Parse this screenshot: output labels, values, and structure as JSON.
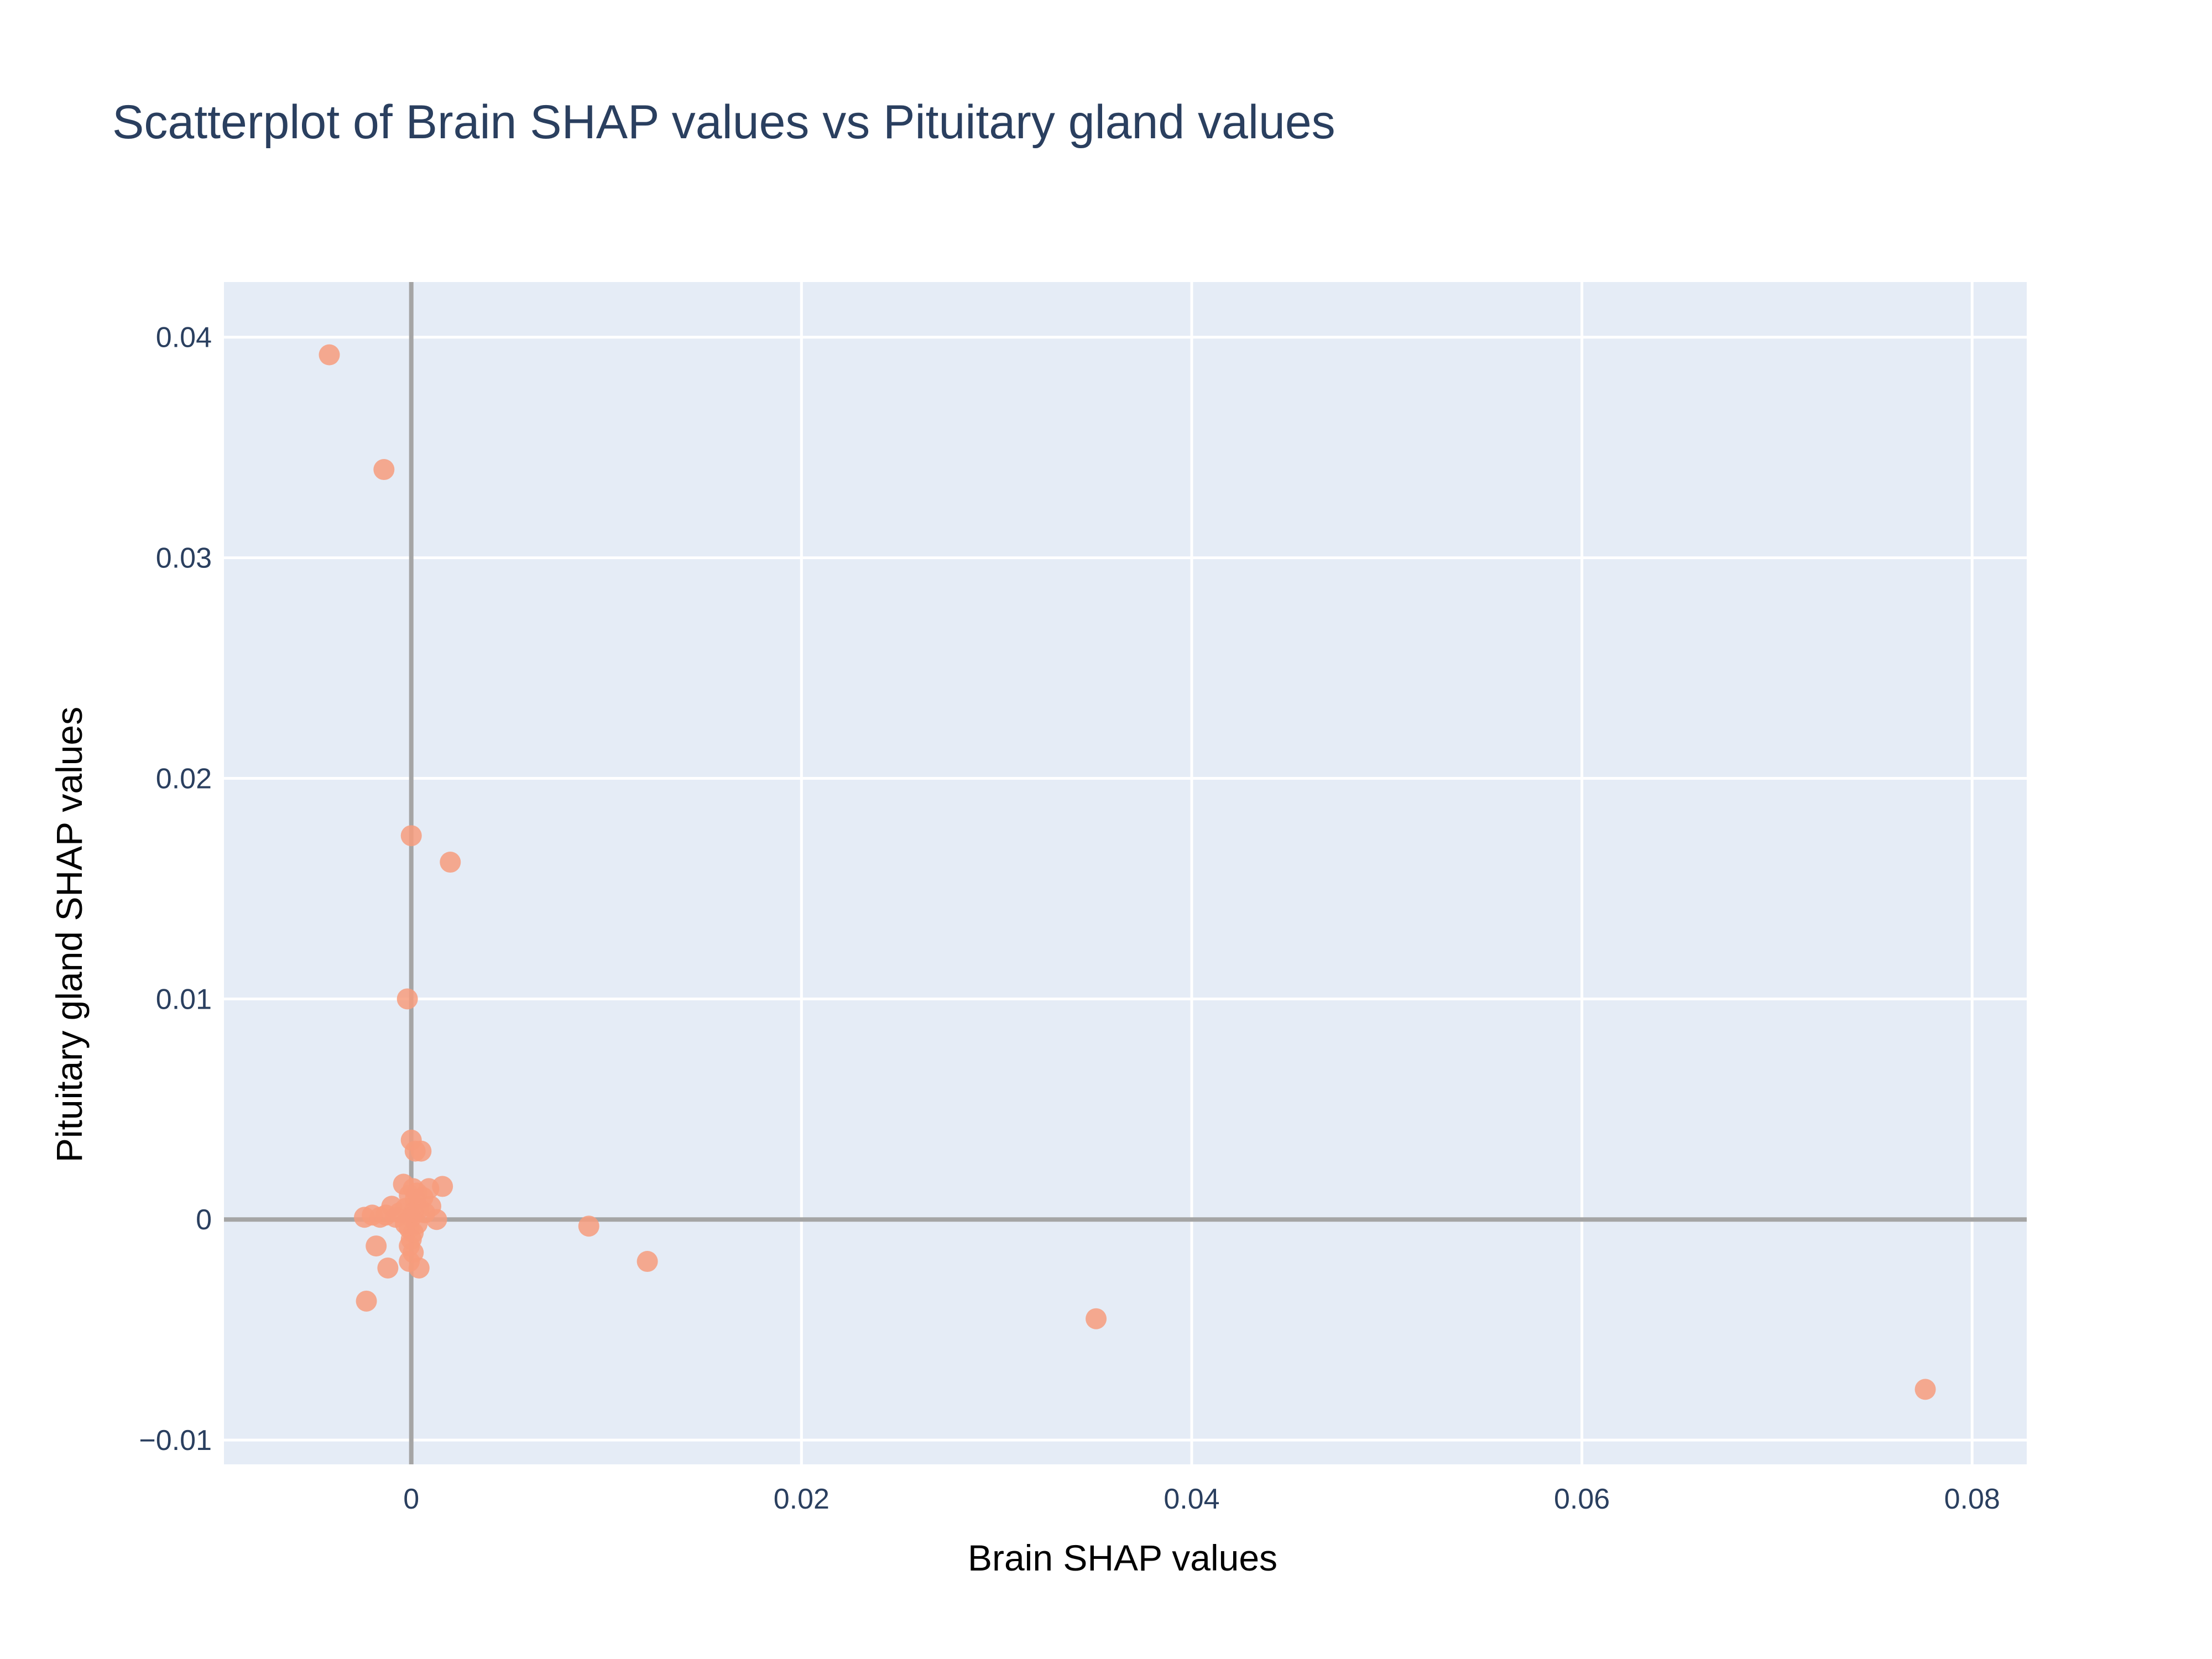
{
  "chart_data": {
    "type": "scatter",
    "title": "Scatterplot of Brain SHAP values vs Pituitary gland values",
    "xlabel": "Brain SHAP values",
    "ylabel": "Pituitary gland SHAP values",
    "xlim": [
      -0.0096,
      0.0828
    ],
    "ylim": [
      -0.0111,
      0.0425
    ],
    "xticks": [
      0,
      0.02,
      0.04,
      0.06,
      0.08
    ],
    "xtick_labels": [
      "0",
      "0.02",
      "0.04",
      "0.06",
      "0.08"
    ],
    "yticks": [
      -0.01,
      0,
      0.01,
      0.02,
      0.03,
      0.04
    ],
    "ytick_labels": [
      "−0.01",
      "0",
      "0.01",
      "0.02",
      "0.03",
      "0.04"
    ],
    "grid": true,
    "zero_lines": true,
    "colors": {
      "plot_background": "#e5ecf6",
      "grid": "#ffffff",
      "zero_line": "#a5a5a5",
      "marker": "#f79c7c",
      "title": "#2a3f5f",
      "tick": "#2a3f5f"
    },
    "series": [
      {
        "marker_color": "#f79c7c",
        "points": [
          [
            -0.0042,
            0.0392
          ],
          [
            -0.0014,
            0.034
          ],
          [
            0.0,
            0.0174
          ],
          [
            0.002,
            0.0162
          ],
          [
            -0.0002,
            0.01
          ],
          [
            0.0,
            0.0036
          ],
          [
            0.0002,
            0.0031
          ],
          [
            0.0005,
            0.0031
          ],
          [
            0.0016,
            0.0015
          ],
          [
            0.0009,
            0.0014
          ],
          [
            -0.0004,
            0.0016
          ],
          [
            0.0001,
            0.0014
          ],
          [
            0.0003,
            0.0012
          ],
          [
            -0.0001,
            0.0011
          ],
          [
            0.0006,
            0.001
          ],
          [
            0.0002,
            0.0009
          ],
          [
            -0.001,
            0.0006
          ],
          [
            0.001,
            0.0006
          ],
          [
            -0.0003,
            0.0005
          ],
          [
            0.0004,
            0.0005
          ],
          [
            -0.0006,
            0.0003
          ],
          [
            0.0007,
            0.0003
          ],
          [
            -0.002,
            0.0002
          ],
          [
            -0.0013,
            0.0002
          ],
          [
            0.0001,
            0.0003
          ],
          [
            -0.0024,
            0.0001
          ],
          [
            -0.0016,
            0.0001
          ],
          [
            -0.0008,
            0.0001
          ],
          [
            0.0,
            0.0001
          ],
          [
            0.0013,
            0.0
          ],
          [
            -0.0003,
            -0.0002
          ],
          [
            0.0003,
            -0.0002
          ],
          [
            -0.0001,
            -0.0004
          ],
          [
            0.0001,
            -0.0006
          ],
          [
            0.0,
            -0.0009
          ],
          [
            -0.0001,
            -0.0012
          ],
          [
            0.0001,
            -0.0015
          ],
          [
            -0.0018,
            -0.0012
          ],
          [
            -0.0001,
            -0.0019
          ],
          [
            0.0004,
            -0.0022
          ],
          [
            -0.0012,
            -0.0022
          ],
          [
            -0.0023,
            -0.0037
          ],
          [
            0.0091,
            -0.0003
          ],
          [
            0.0121,
            -0.0019
          ],
          [
            0.0351,
            -0.0045
          ],
          [
            0.0776,
            -0.0077
          ]
        ]
      }
    ]
  }
}
